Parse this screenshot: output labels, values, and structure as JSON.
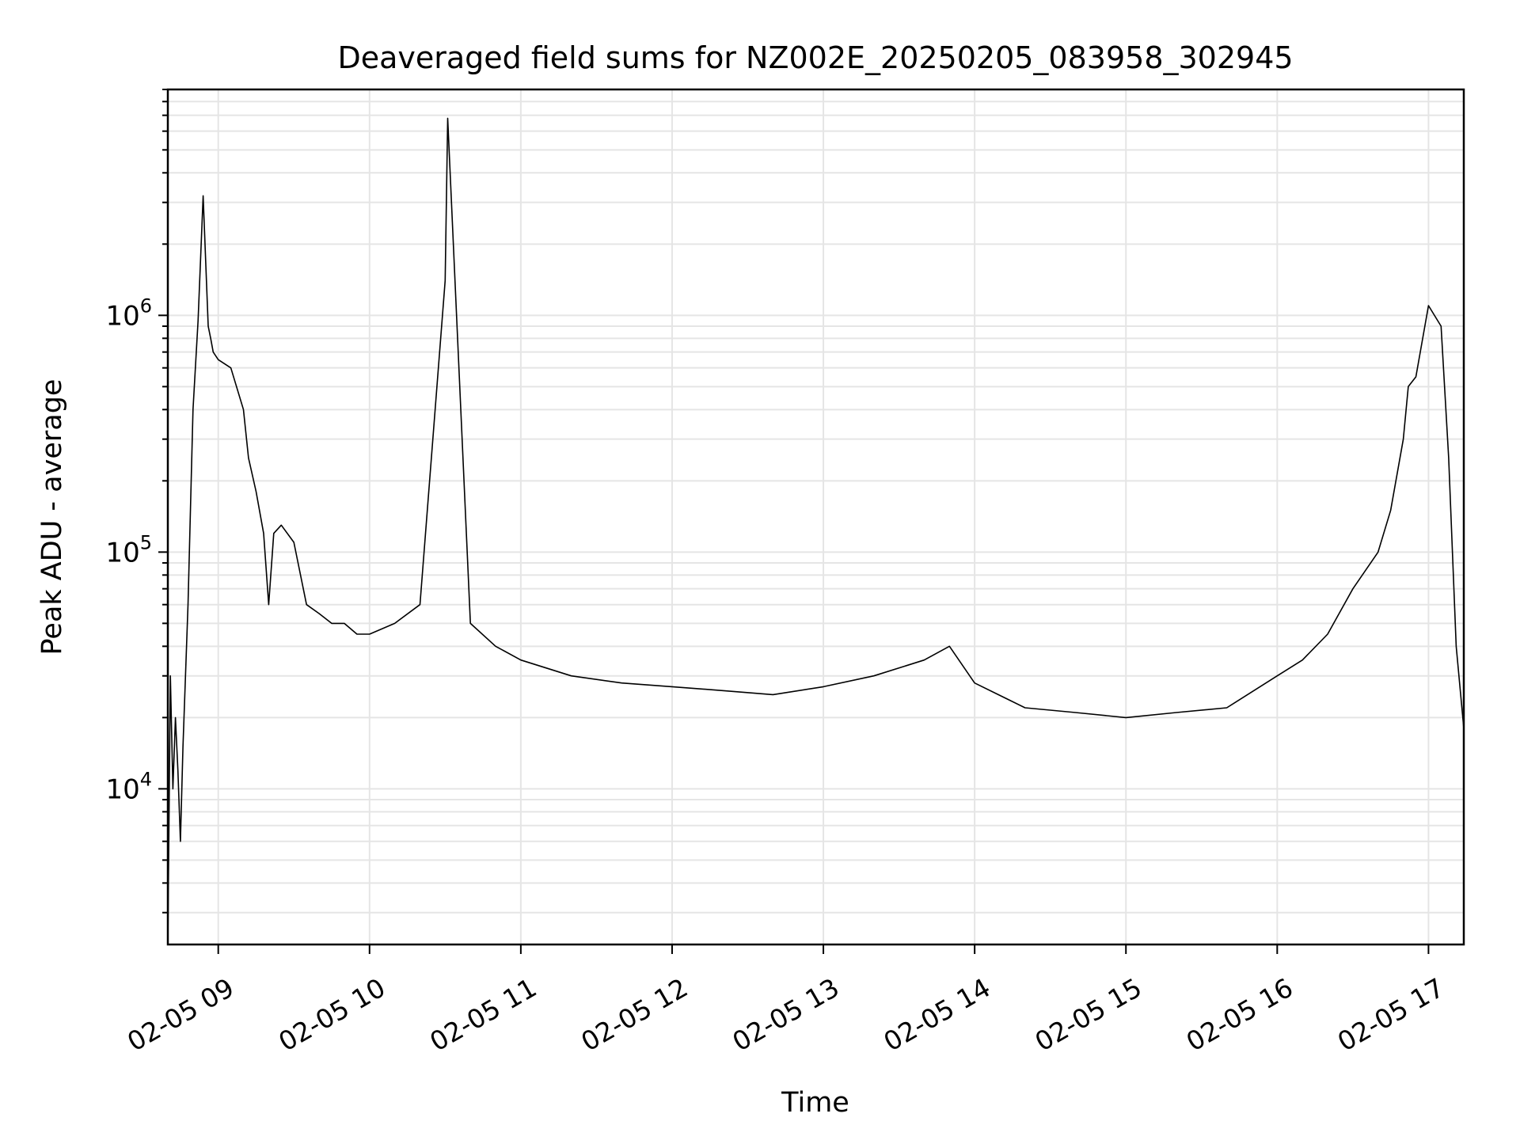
{
  "chart_data": {
    "type": "line",
    "title": "Deaveraged field sums for NZ002E_20250205_083958_302945",
    "xlabel": "Time",
    "ylabel": "Peak ADU - average",
    "yscale": "log",
    "ylim": [
      2200,
      9000000
    ],
    "xlim": [
      "2025-02-05 08:40",
      "2025-02-05 17:14"
    ],
    "grid": true,
    "line_color": "#000000",
    "grid_color": "#e5e5e5",
    "x_ticks": [
      {
        "t": "2025-02-05 09:00",
        "label": "02-05 09"
      },
      {
        "t": "2025-02-05 10:00",
        "label": "02-05 10"
      },
      {
        "t": "2025-02-05 11:00",
        "label": "02-05 11"
      },
      {
        "t": "2025-02-05 12:00",
        "label": "02-05 12"
      },
      {
        "t": "2025-02-05 13:00",
        "label": "02-05 13"
      },
      {
        "t": "2025-02-05 14:00",
        "label": "02-05 14"
      },
      {
        "t": "2025-02-05 15:00",
        "label": "02-05 15"
      },
      {
        "t": "2025-02-05 16:00",
        "label": "02-05 16"
      },
      {
        "t": "2025-02-05 17:00",
        "label": "02-05 17"
      }
    ],
    "y_ticks": [
      {
        "value": 10000,
        "base": "10",
        "exp": "4"
      },
      {
        "value": 100000,
        "base": "10",
        "exp": "5"
      },
      {
        "value": 1000000,
        "base": "10",
        "exp": "6"
      }
    ],
    "series": [
      {
        "x": [
          "2025-02-05 08:40",
          "2025-02-05 08:41",
          "2025-02-05 08:42",
          "2025-02-05 08:43",
          "2025-02-05 08:44",
          "2025-02-05 08:45",
          "2025-02-05 08:46",
          "2025-02-05 08:48",
          "2025-02-05 08:50",
          "2025-02-05 08:52",
          "2025-02-05 08:54",
          "2025-02-05 08:56",
          "2025-02-05 08:57",
          "2025-02-05 08:58",
          "2025-02-05 09:00",
          "2025-02-05 09:05",
          "2025-02-05 09:10",
          "2025-02-05 09:12",
          "2025-02-05 09:15",
          "2025-02-05 09:18",
          "2025-02-05 09:20",
          "2025-02-05 09:22",
          "2025-02-05 09:25",
          "2025-02-05 09:30",
          "2025-02-05 09:35",
          "2025-02-05 09:40",
          "2025-02-05 09:45",
          "2025-02-05 09:50",
          "2025-02-05 09:55",
          "2025-02-05 10:00",
          "2025-02-05 10:10",
          "2025-02-05 10:20",
          "2025-02-05 10:30",
          "2025-02-05 10:31",
          "2025-02-05 10:40",
          "2025-02-05 10:50",
          "2025-02-05 11:00",
          "2025-02-05 11:20",
          "2025-02-05 11:40",
          "2025-02-05 12:00",
          "2025-02-05 12:20",
          "2025-02-05 12:40",
          "2025-02-05 13:00",
          "2025-02-05 13:20",
          "2025-02-05 13:40",
          "2025-02-05 13:50",
          "2025-02-05 14:00",
          "2025-02-05 14:20",
          "2025-02-05 14:40",
          "2025-02-05 15:00",
          "2025-02-05 15:20",
          "2025-02-05 15:40",
          "2025-02-05 16:00",
          "2025-02-05 16:10",
          "2025-02-05 16:20",
          "2025-02-05 16:30",
          "2025-02-05 16:40",
          "2025-02-05 16:45",
          "2025-02-05 16:50",
          "2025-02-05 16:52",
          "2025-02-05 16:55",
          "2025-02-05 17:00",
          "2025-02-05 17:05",
          "2025-02-05 17:08",
          "2025-02-05 17:11",
          "2025-02-05 17:14"
        ],
        "y": [
          2200,
          30000,
          10000,
          20000,
          12000,
          6000,
          15000,
          60000,
          400000,
          950000,
          3200000,
          900000,
          800000,
          700000,
          650000,
          600000,
          400000,
          250000,
          180000,
          120000,
          60000,
          120000,
          130000,
          110000,
          60000,
          55000,
          50000,
          50000,
          45000,
          45000,
          50000,
          60000,
          1400000,
          6800000,
          50000,
          40000,
          35000,
          30000,
          28000,
          27000,
          26000,
          25000,
          27000,
          30000,
          35000,
          40000,
          28000,
          22000,
          21000,
          20000,
          21000,
          22000,
          30000,
          35000,
          45000,
          70000,
          100000,
          150000,
          300000,
          500000,
          550000,
          1100000,
          900000,
          250000,
          40000,
          18000
        ]
      }
    ]
  }
}
